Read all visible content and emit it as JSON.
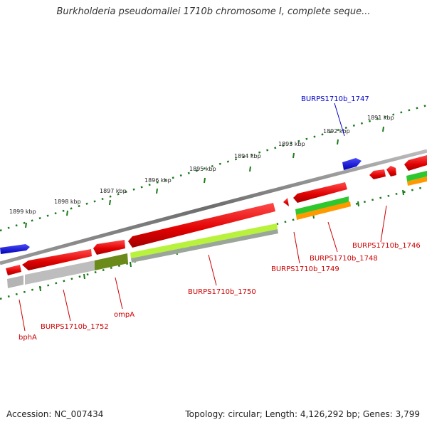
{
  "title": "Burkholderia pseudomallei 1710b chromosome I, complete seque...",
  "footer": {
    "accession": "Accession: NC_007434",
    "summary": "Topology: circular; Length: 4,126,292 bp; Genes: 3,799"
  },
  "ruler_labels": [
    "1899 kbp",
    "1898 kbp",
    "1897 kbp",
    "1896 kbp",
    "1895 kbp",
    "1894 kbp",
    "1893 kbp",
    "1892 kbp",
    "1891 kbp"
  ],
  "gene_labels": {
    "g1747": "BURPS1710b_1747",
    "g1746": "BURPS1710b_1746",
    "g1748": "BURPS1710b_1748",
    "g1749": "BURPS1710b_1749",
    "g1750": "BURPS1710b_1750",
    "g1752": "BURPS1710b_1752",
    "ompA": "ompA",
    "bphA": "bphA"
  },
  "colors": {
    "gene_red": "#e00000",
    "gene_blue": "#1010c0",
    "backbone": "#7a7a7a",
    "tick_green": "#1a7a1a",
    "label_red": "#cc0000",
    "label_blue": "#0000cc",
    "cds_green": "#2ec82e",
    "cds_orange": "#ff9900",
    "cds_lime": "#b8f23c",
    "cds_olive": "#6a8a1a",
    "cds_gray": "#b4b4b4"
  }
}
